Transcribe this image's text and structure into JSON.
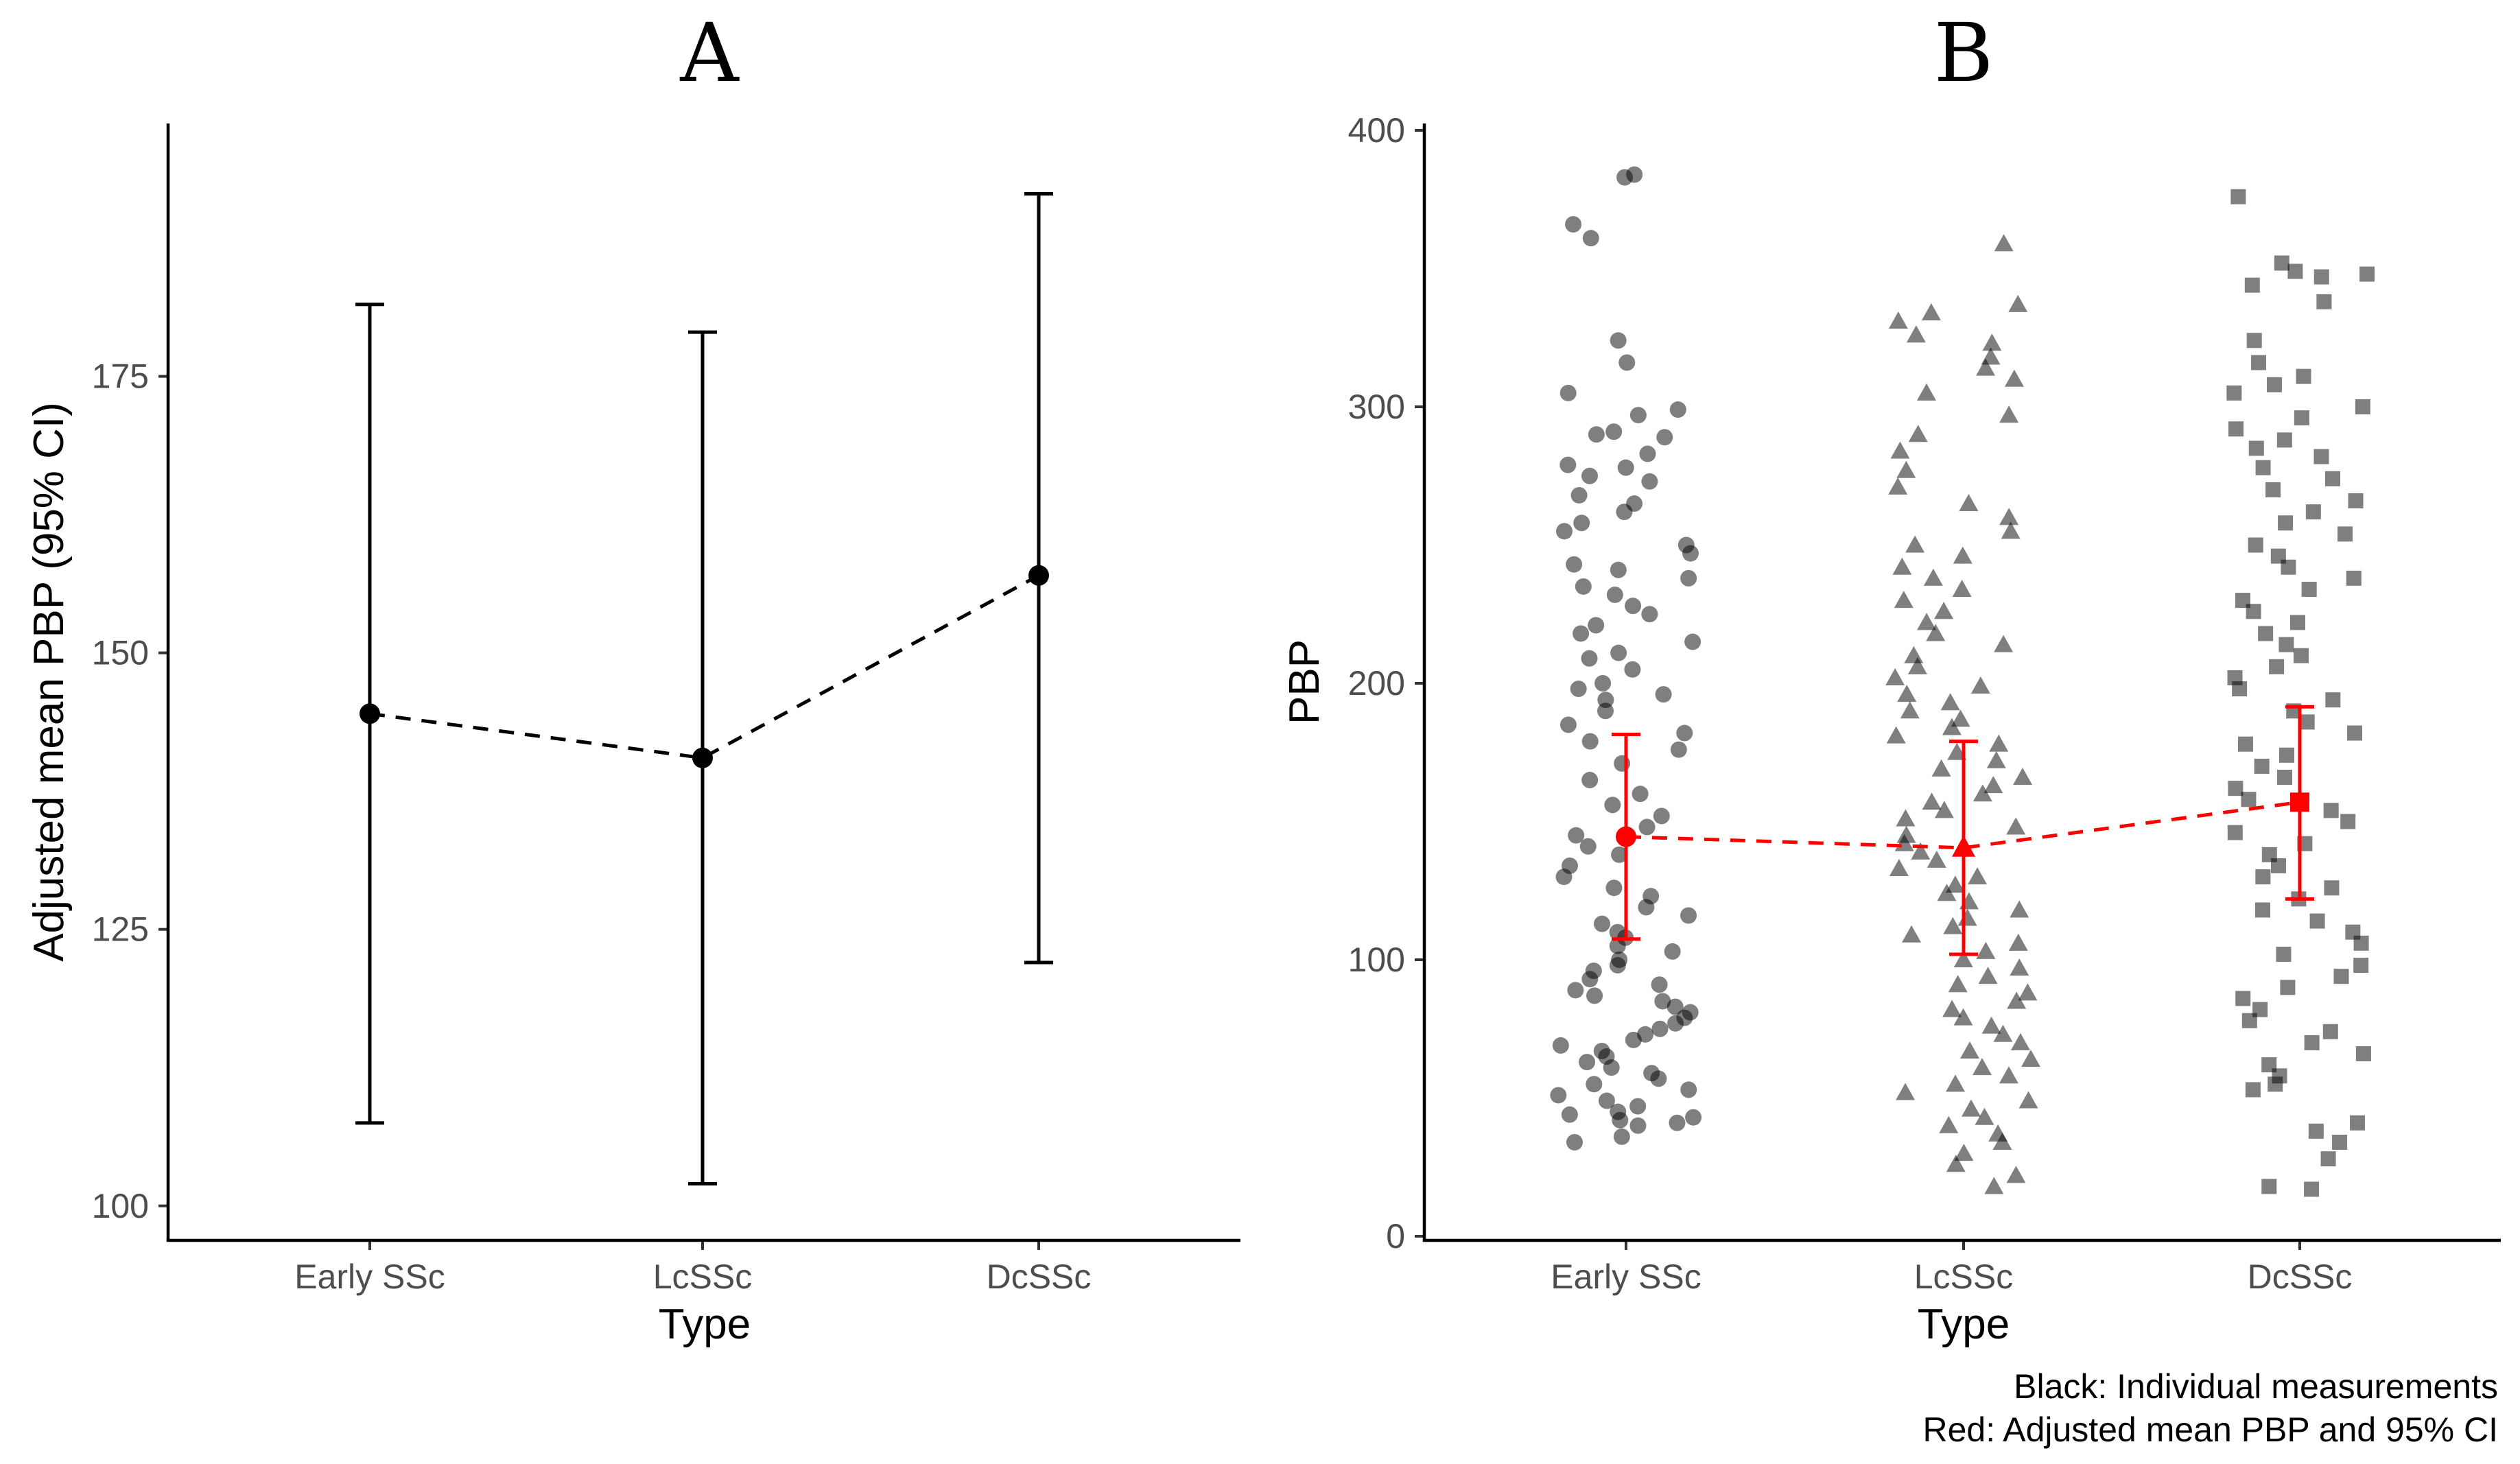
{
  "chart_data": [
    {
      "panel": "A",
      "type": "scatter",
      "title": "A",
      "xlabel": "Type",
      "ylabel": "Adjusted mean PBP (95% CI)",
      "categories": [
        "Early SSc",
        "LcSSc",
        "DcSSc"
      ],
      "yticks": [
        "100",
        "125",
        "150",
        "175"
      ],
      "ylim": [
        98,
        196
      ],
      "series": [
        {
          "values": [
            144.5,
            140.5,
            157.0
          ],
          "lower": [
            107.5,
            102.0,
            122.0
          ],
          "upper": [
            181.5,
            179.0,
            191.5
          ],
          "color": "#000000"
        }
      ]
    },
    {
      "panel": "B",
      "type": "scatter",
      "title": "B",
      "xlabel": "Type",
      "ylabel": "PBP",
      "categories": [
        "Early SSc",
        "LcSSc",
        "DcSSc"
      ],
      "yticks": [
        "0",
        "100",
        "200",
        "300",
        "400"
      ],
      "ylim": [
        0,
        400
      ],
      "individual_points": {
        "color": "#000000",
        "opacity": 0.5,
        "shapes": [
          "circle",
          "triangle",
          "square"
        ],
        "Early SSc": [
          383,
          384,
          366,
          361,
          324,
          316,
          305,
          299,
          297,
          291,
          290,
          289,
          283,
          279,
          278,
          275,
          273,
          268,
          265,
          262,
          258,
          255,
          250,
          247,
          243,
          241,
          238,
          235,
          232,
          228,
          225,
          221,
          218,
          215,
          211,
          209,
          205,
          200,
          198,
          196,
          194,
          190,
          185,
          182,
          179,
          176,
          171,
          165,
          160,
          156,
          152,
          148,
          145,
          141,
          138,
          134,
          130,
          126,
          123,
          119,
          116,
          113,
          110,
          108,
          105,
          103,
          100,
          98,
          96,
          93,
          91,
          89,
          87,
          85,
          83,
          81,
          79,
          77,
          75,
          73,
          71,
          69,
          67,
          65,
          63,
          61,
          59,
          57,
          55,
          53,
          51,
          49,
          47,
          45,
          44,
          43,
          42,
          41,
          40,
          36,
          34
        ],
        "LcSSc": [
          359,
          337,
          334,
          331,
          326,
          323,
          318,
          314,
          310,
          305,
          297,
          290,
          284,
          277,
          271,
          265,
          260,
          255,
          250,
          246,
          242,
          238,
          234,
          230,
          226,
          222,
          218,
          214,
          210,
          206,
          202,
          199,
          196,
          193,
          190,
          187,
          184,
          181,
          178,
          175,
          172,
          169,
          166,
          163,
          160,
          157,
          154,
          151,
          148,
          145,
          142,
          139,
          136,
          133,
          130,
          127,
          124,
          121,
          118,
          115,
          112,
          109,
          106,
          103,
          100,
          97,
          94,
          91,
          88,
          85,
          82,
          79,
          76,
          73,
          70,
          67,
          64,
          61,
          58,
          55,
          52,
          49,
          46,
          43,
          40,
          37,
          34,
          30,
          26,
          22,
          18
        ],
        "DcSSc": [
          376,
          352,
          349,
          348,
          347,
          344,
          338,
          324,
          316,
          311,
          308,
          305,
          300,
          296,
          292,
          288,
          285,
          282,
          278,
          274,
          270,
          266,
          262,
          258,
          254,
          250,
          246,
          242,
          238,
          234,
          230,
          226,
          222,
          218,
          214,
          210,
          206,
          202,
          198,
          194,
          190,
          186,
          182,
          178,
          174,
          170,
          166,
          162,
          158,
          154,
          150,
          146,
          142,
          138,
          134,
          130,
          126,
          122,
          118,
          114,
          110,
          106,
          102,
          98,
          94,
          90,
          86,
          82,
          78,
          74,
          70,
          66,
          62,
          58,
          55,
          53,
          41,
          38,
          34,
          28,
          18,
          17
        ]
      },
      "series": [
        {
          "values": [
            144.5,
            140.5,
            157.0
          ],
          "lower": [
            107.5,
            102.0,
            122.0
          ],
          "upper": [
            181.5,
            179.0,
            191.5
          ],
          "color": "#ff0000"
        }
      ],
      "annotations": [
        "Black: Individual measurements",
        "Red: Adjusted mean PBP and 95% CI"
      ]
    }
  ]
}
